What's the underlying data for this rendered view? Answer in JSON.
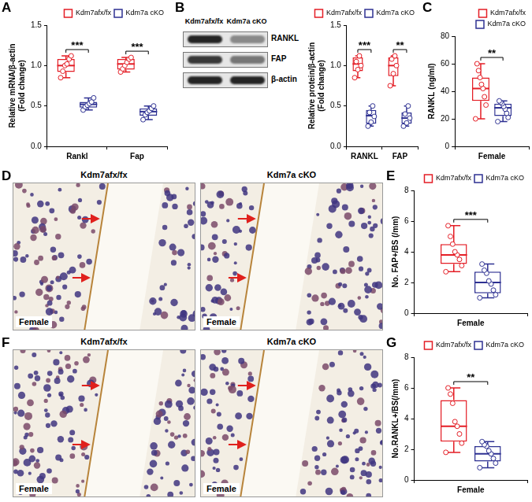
{
  "figure": {
    "blot": {
      "panel": "B",
      "columns": [
        "Kdm7afx/fx",
        "Kdm7a cKO"
      ],
      "rows": [
        {
          "label": "RANKL",
          "intensity": [
            0.95,
            0.45
          ]
        },
        {
          "label": "FAP",
          "intensity": [
            0.85,
            0.55
          ]
        },
        {
          "label": "β-actin",
          "intensity": [
            0.95,
            0.95
          ]
        }
      ]
    },
    "images": [
      {
        "panel": "D",
        "panes": [
          {
            "title": "Kdm7afx/fx",
            "tag": "Female"
          },
          {
            "title": "Kdm7a cKO",
            "tag": "Female"
          }
        ]
      },
      {
        "panel": "F",
        "panes": [
          {
            "title": "Kdm7afx/fx",
            "tag": "Female"
          },
          {
            "title": "Kdm7a cKO",
            "tag": "Female"
          }
        ]
      }
    ]
  },
  "chart_data": [
    {
      "type": "box",
      "panel": "A",
      "y_label": [
        "Relative mRNA/β-actin",
        "(Fold change)"
      ],
      "categories": [
        "Rankl",
        "Fap"
      ],
      "series": [
        {
          "name": "Kdm7afx/fx",
          "color": "#e41e26",
          "values": [
            {
              "min": 0.85,
              "q1": 0.92,
              "median": 1.0,
              "q3": 1.08,
              "max": 1.12,
              "points": [
                0.85,
                0.93,
                1.0,
                1.02,
                1.08,
                1.12
              ]
            },
            {
              "min": 0.92,
              "q1": 0.95,
              "median": 1.02,
              "q3": 1.08,
              "max": 1.1,
              "points": [
                0.92,
                0.96,
                1.0,
                1.04,
                1.08,
                1.1
              ]
            }
          ]
        },
        {
          "name": "Kdm7a cKO",
          "color": "#2e3192",
          "values": [
            {
              "min": 0.45,
              "q1": 0.48,
              "median": 0.52,
              "q3": 0.55,
              "max": 0.6,
              "points": [
                0.45,
                0.49,
                0.51,
                0.53,
                0.55,
                0.6
              ]
            },
            {
              "min": 0.33,
              "q1": 0.38,
              "median": 0.43,
              "q3": 0.47,
              "max": 0.5,
              "points": [
                0.33,
                0.39,
                0.42,
                0.44,
                0.47,
                0.5
              ]
            }
          ]
        }
      ],
      "ylim": [
        0,
        1.5
      ],
      "yticks": [
        {
          "value": 0,
          "label": "0.0"
        },
        0.5,
        {
          "value": 1,
          "label": "1.0"
        },
        1.5
      ],
      "annotations": [
        {
          "category": "Rankl",
          "text": "***"
        },
        {
          "category": "Fap",
          "text": "***"
        }
      ],
      "legend": "upper right",
      "grid": false
    },
    {
      "type": "box",
      "y_label": [
        "Relative protein/β-actin",
        "(Fold change)"
      ],
      "categories": [
        "RANKL",
        "FAP"
      ],
      "series": [
        {
          "name": "Kdm7afx/fx",
          "color": "#e41e26",
          "values": [
            {
              "min": 0.85,
              "q1": 0.93,
              "median": 1.02,
              "q3": 1.1,
              "max": 1.12,
              "points": [
                0.85,
                0.95,
                1.0,
                1.05,
                1.12
              ]
            },
            {
              "min": 0.75,
              "q1": 0.87,
              "median": 1.0,
              "q3": 1.1,
              "max": 1.12,
              "points": [
                0.75,
                0.9,
                1.0,
                1.08,
                1.12
              ]
            }
          ]
        },
        {
          "name": "Kdm7a cKO",
          "color": "#2e3192",
          "values": [
            {
              "min": 0.25,
              "q1": 0.28,
              "median": 0.38,
              "q3": 0.45,
              "max": 0.5,
              "points": [
                0.25,
                0.3,
                0.37,
                0.42,
                0.5
              ]
            },
            {
              "min": 0.25,
              "q1": 0.28,
              "median": 0.35,
              "q3": 0.42,
              "max": 0.5,
              "points": [
                0.25,
                0.29,
                0.35,
                0.4,
                0.5
              ]
            }
          ]
        }
      ],
      "ylim": [
        0,
        1.5
      ],
      "yticks": [
        {
          "value": 0,
          "label": "0.0"
        },
        0.5,
        {
          "value": 1,
          "label": "1.0"
        },
        1.5
      ],
      "annotations": [
        {
          "category": "RANKL",
          "text": "***"
        },
        {
          "category": "FAP",
          "text": "**"
        }
      ],
      "legend": "upper right",
      "grid": false
    },
    {
      "type": "box",
      "panel": "C",
      "y_label": "RANKL (ng/ml)",
      "categories": [
        "Female"
      ],
      "series": [
        {
          "name": "Kdm7afx/fx",
          "color": "#e41e26",
          "values": [
            {
              "min": 20,
              "q1": 33,
              "median": 42,
              "q3": 50,
              "max": 60,
              "points": [
                20,
                30,
                36,
                42,
                45,
                50,
                55,
                60
              ]
            }
          ]
        },
        {
          "name": "Kdm7a cKO",
          "color": "#2e3192",
          "values": [
            {
              "min": 18,
              "q1": 22,
              "median": 28,
              "q3": 31,
              "max": 33,
              "points": [
                18,
                21,
                24,
                27,
                29,
                31,
                32,
                33
              ]
            }
          ]
        }
      ],
      "ylim": [
        0,
        80
      ],
      "yticks": [
        0,
        20,
        40,
        60,
        80
      ],
      "annotations": [
        {
          "category": "Female",
          "text": "**"
        }
      ],
      "legend": "upper right",
      "grid": false
    },
    {
      "type": "box",
      "panel": "E",
      "y_label": "No. FAP+/BS (/mm)",
      "categories": [
        "Female"
      ],
      "series": [
        {
          "name": "Kdm7afx/fx",
          "color": "#e41e26",
          "values": [
            {
              "min": 2.7,
              "q1": 3.2,
              "median": 3.8,
              "q3": 4.5,
              "max": 5.7,
              "points": [
                2.7,
                3.1,
                3.5,
                3.8,
                4.0,
                4.5,
                5.0,
                5.7
              ]
            }
          ]
        },
        {
          "name": "Kdm7a cKO",
          "color": "#2e3192",
          "values": [
            {
              "min": 1.0,
              "q1": 1.3,
              "median": 2.0,
              "q3": 2.7,
              "max": 3.2,
              "points": [
                1.0,
                1.2,
                1.5,
                1.9,
                2.1,
                2.6,
                2.8,
                3.2
              ]
            }
          ]
        }
      ],
      "ylim": [
        0,
        8
      ],
      "yticks": [
        0,
        2,
        4,
        6,
        8
      ],
      "annotations": [
        {
          "category": "Female",
          "text": "***"
        }
      ],
      "legend": "upper right",
      "grid": false
    },
    {
      "type": "box",
      "panel": "G",
      "y_label": "No.RANKL+/BS(/mm)",
      "categories": [
        "Female"
      ],
      "series": [
        {
          "name": "Kdm7afx/fx",
          "color": "#e41e26",
          "values": [
            {
              "min": 1.8,
              "q1": 2.5,
              "median": 3.5,
              "q3": 5.2,
              "max": 6.0,
              "points": [
                1.8,
                2.4,
                3.0,
                3.5,
                3.8,
                5.0,
                5.6,
                6.0
              ]
            }
          ]
        },
        {
          "name": "Kdm7a cKO",
          "color": "#2e3192",
          "values": [
            {
              "min": 0.8,
              "q1": 1.2,
              "median": 1.7,
              "q3": 2.2,
              "max": 2.5,
              "points": [
                0.8,
                1.1,
                1.4,
                1.7,
                1.9,
                2.2,
                2.3,
                2.5
              ]
            }
          ]
        }
      ],
      "ylim": [
        0,
        8
      ],
      "yticks": [
        0,
        2,
        4,
        6,
        8
      ],
      "annotations": [
        {
          "category": "Female",
          "text": "**"
        }
      ],
      "legend": "upper right",
      "grid": false
    }
  ]
}
